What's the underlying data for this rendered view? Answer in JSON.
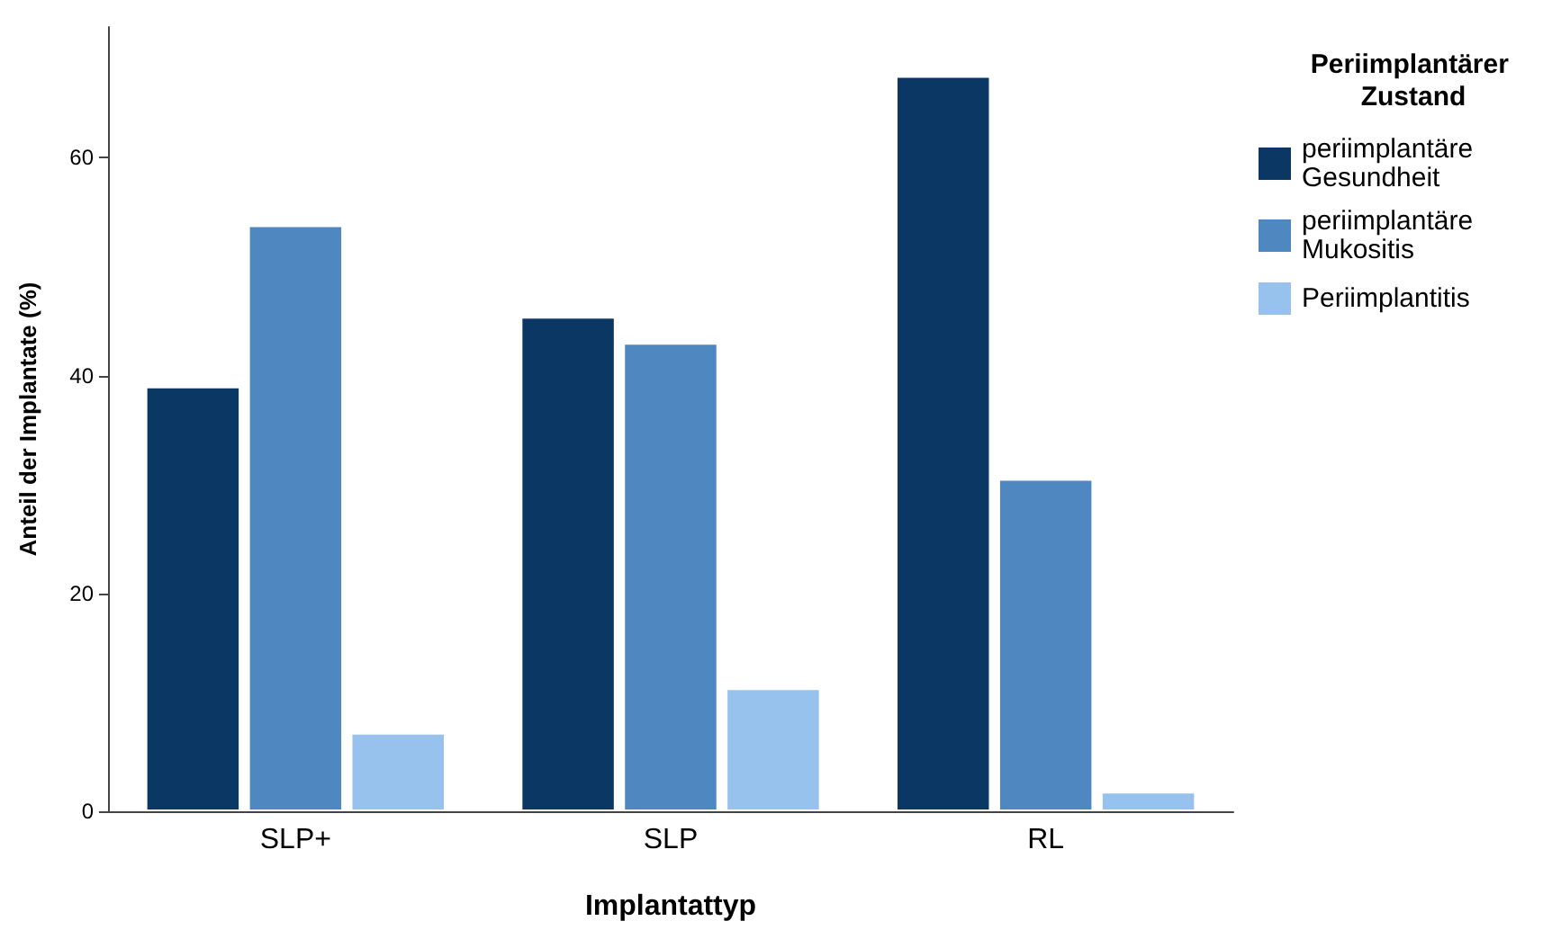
{
  "chart_data": {
    "type": "bar",
    "xlabel": "Implantattyp",
    "ylabel": "Anteil der Implantate (%)",
    "legend_title": "Periimplantärer Zustand",
    "categories": [
      "SLP+",
      "SLP",
      "RL"
    ],
    "series": [
      {
        "name": "periimplantäre Gesundheit",
        "color": "#0b3764",
        "values": [
          39,
          45.4,
          67.5
        ]
      },
      {
        "name": "periimplantäre Mukositis",
        "color": "#4f87c1",
        "values": [
          53.8,
          43,
          30.5
        ]
      },
      {
        "name": "Periimplantitis",
        "color": "#97c2ed",
        "values": [
          7.2,
          11.3,
          1.8
        ]
      }
    ],
    "ylim": [
      0,
      72
    ],
    "yticks": [
      0,
      20,
      40,
      60
    ],
    "grid": false,
    "legend": "right"
  }
}
